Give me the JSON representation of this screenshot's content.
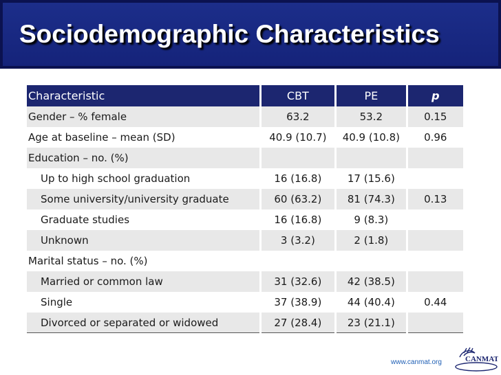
{
  "slide": {
    "title": "Sociodemographic Characteristics"
  },
  "table": {
    "headers": {
      "characteristic": "Characteristic",
      "cbt": "CBT",
      "pe": "PE",
      "p": "p"
    },
    "rows": [
      {
        "label": "Gender – % female",
        "cbt": "63.2",
        "pe": "53.2",
        "p": "0.15"
      },
      {
        "label": "Age at baseline – mean (SD)",
        "cbt": "40.9 (10.7)",
        "pe": "40.9 (10.8)",
        "p": "0.96"
      },
      {
        "label": "Education – no. (%)",
        "cbt": "",
        "pe": "",
        "p": ""
      },
      {
        "label": "Up to high school graduation",
        "cbt": "16 (16.8)",
        "pe": "17 (15.6)",
        "p": ""
      },
      {
        "label": "Some university/university graduate",
        "cbt": "60 (63.2)",
        "pe": "81 (74.3)",
        "p": "0.13"
      },
      {
        "label": "Graduate studies",
        "cbt": "16 (16.8)",
        "pe": "9 (8.3)",
        "p": ""
      },
      {
        "label": "Unknown",
        "cbt": "3 (3.2)",
        "pe": "2 (1.8)",
        "p": ""
      },
      {
        "label": "Marital status – no. (%)",
        "cbt": "",
        "pe": "",
        "p": ""
      },
      {
        "label": "Married or common law",
        "cbt": "31 (32.6)",
        "pe": "42 (38.5)",
        "p": ""
      },
      {
        "label": "Single",
        "cbt": "37 (38.9)",
        "pe": "44 (40.4)",
        "p": "0.44"
      },
      {
        "label": "Divorced or separated or widowed",
        "cbt": "27 (28.4)",
        "pe": "23 (21.1)",
        "p": ""
      }
    ]
  },
  "footer": {
    "url": "www.canmat.org",
    "logo_text": "CANMAT"
  },
  "colors": {
    "title_bar": "#1c2e8a",
    "header_row": "#1c2670",
    "stripe": "#e8e8e8",
    "url": "#1f5fb5"
  }
}
